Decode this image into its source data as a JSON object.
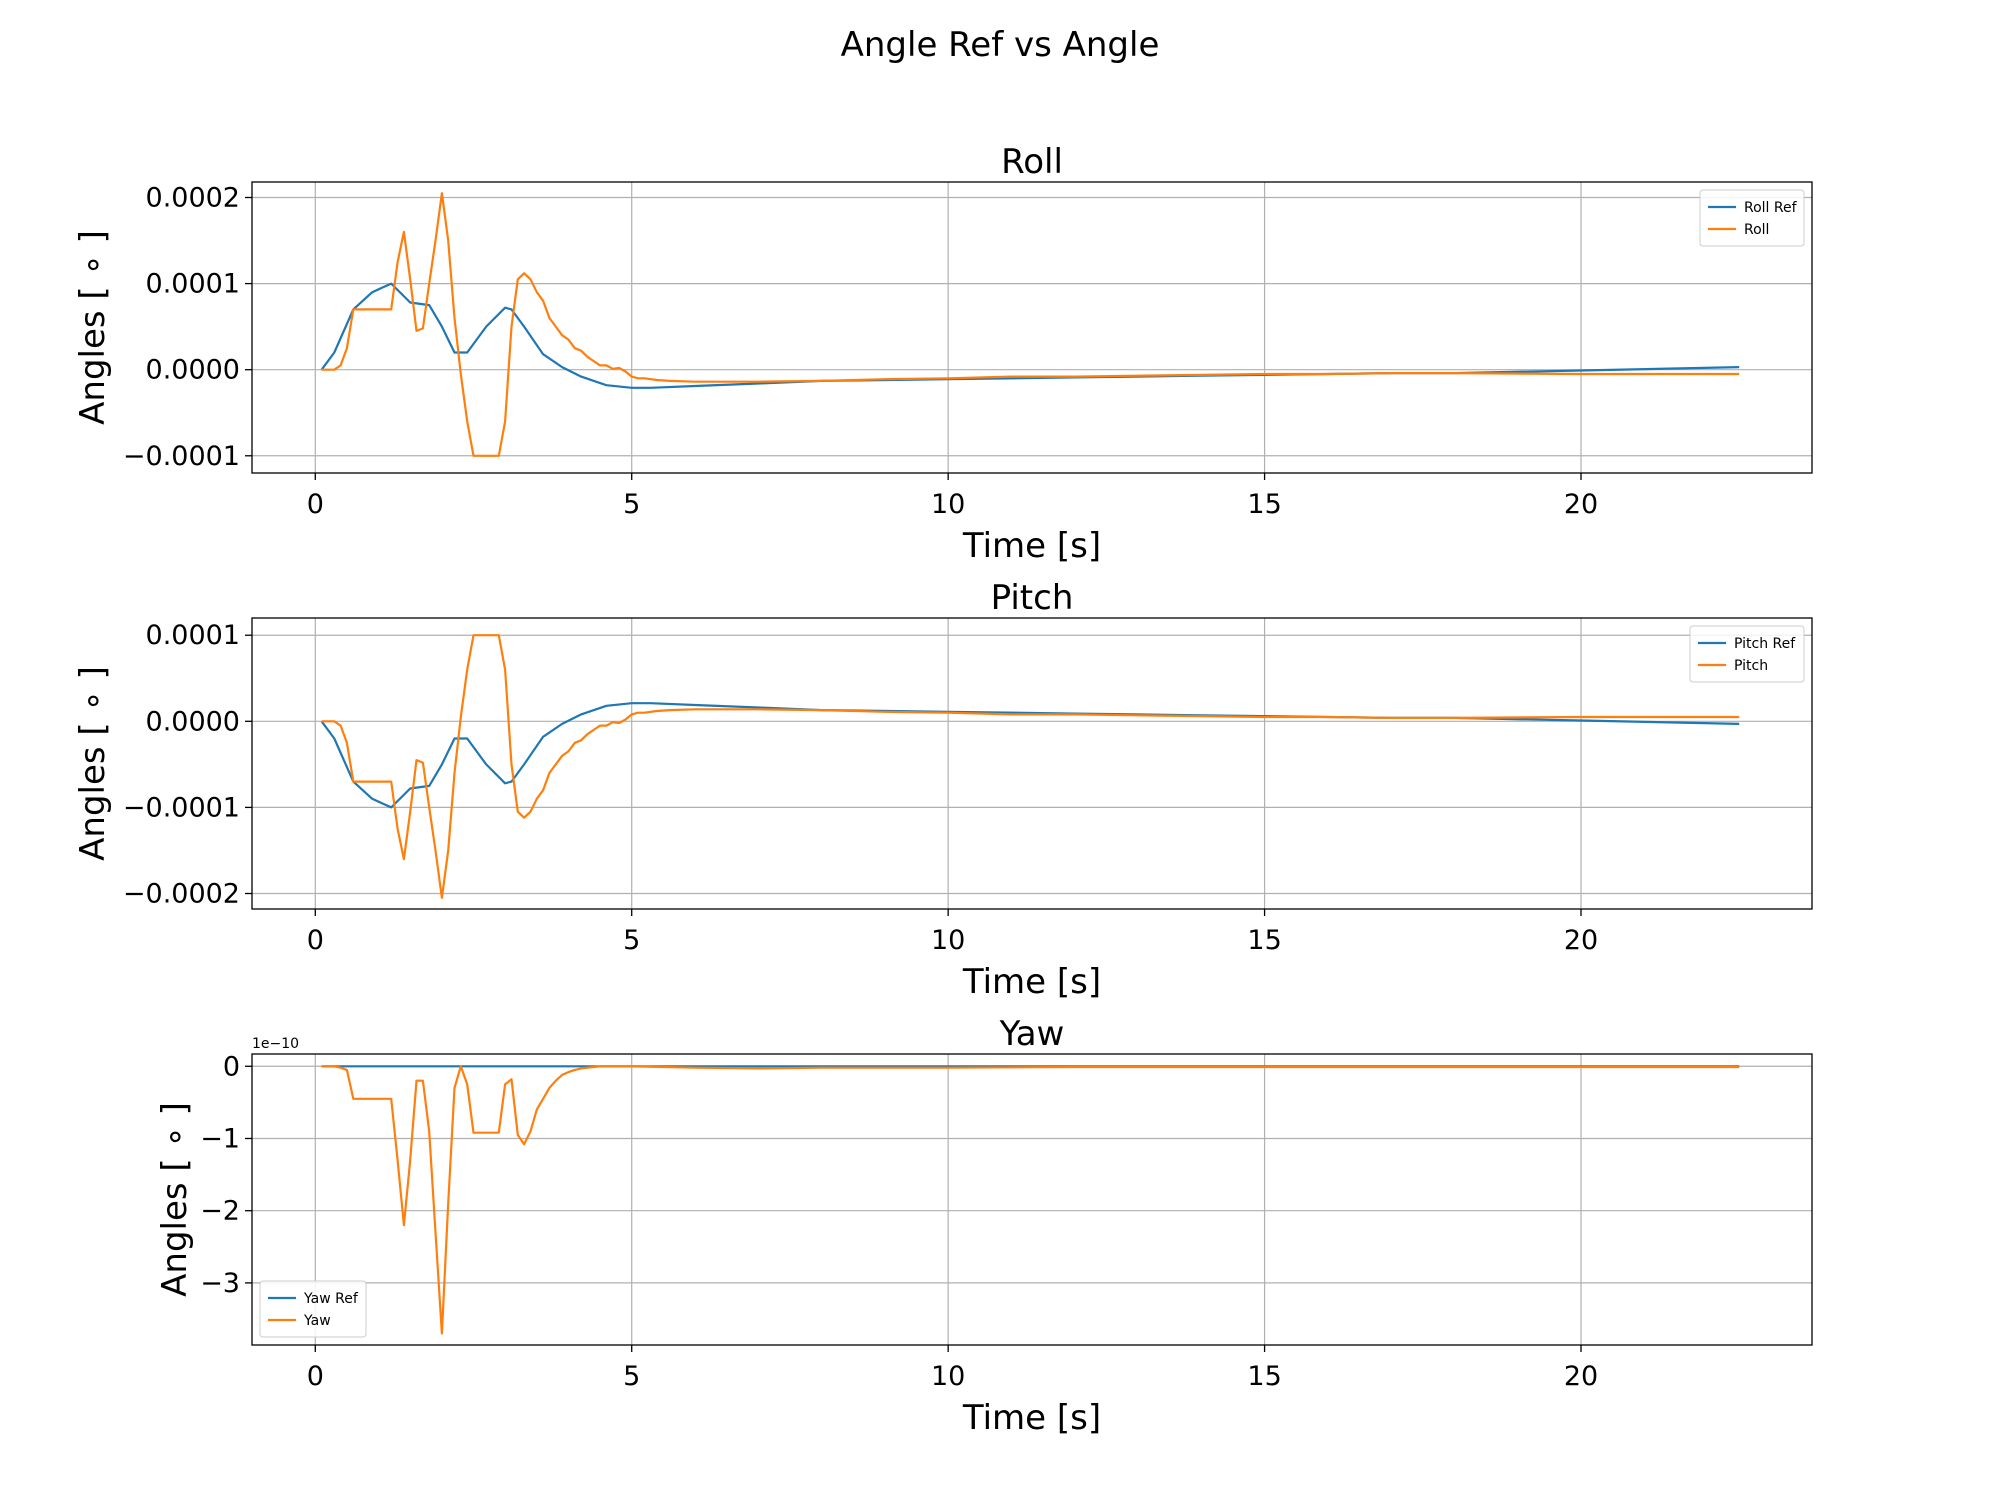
{
  "suptitle": "Angle Ref vs Angle",
  "colors": {
    "ref": "#1f77b4",
    "actual": "#ff7f0e",
    "grid": "#b0b0b0",
    "axes": "#000000"
  },
  "chart_data": [
    {
      "type": "line",
      "title": "Roll",
      "xlabel": "Time [s]",
      "ylabel": "Angles [ ∘ ]",
      "xlim": [
        -1.0,
        23.65
      ],
      "ylim": [
        -0.00012,
        0.000218
      ],
      "xticks": [
        0,
        5,
        10,
        15,
        20
      ],
      "xtick_labels": [
        "0",
        "5",
        "10",
        "15",
        "20"
      ],
      "yticks": [
        -0.0001,
        0,
        0.0001,
        0.0002
      ],
      "ytick_labels": [
        "−0.0001",
        "0.0000",
        "0.0001",
        "0.0002"
      ],
      "offset_text": "",
      "grid": true,
      "legend_position": "top-right",
      "series": [
        {
          "name": "Roll Ref",
          "color": "#1f77b4",
          "x": [
            0.1,
            0.3,
            0.6,
            0.9,
            1.2,
            1.5,
            1.8,
            2.0,
            2.2,
            2.4,
            2.7,
            3.0,
            3.1,
            3.3,
            3.6,
            3.9,
            4.2,
            4.6,
            5.0,
            5.3,
            6.0,
            7.0,
            8.0,
            10.0,
            12.0,
            14.0,
            15.0,
            16.0,
            17.0,
            18.0,
            20.0,
            22.5
          ],
          "y": [
            0,
            2e-05,
            7e-05,
            9e-05,
            0.0001,
            7.8e-05,
            7.5e-05,
            5e-05,
            2e-05,
            2e-05,
            5e-05,
            7.2e-05,
            7e-05,
            5e-05,
            1.8e-05,
            3e-06,
            -8e-06,
            -1.8e-05,
            -2.1e-05,
            -2.1e-05,
            -1.9e-05,
            -1.6e-05,
            -1.3e-05,
            -1.1e-05,
            -9e-06,
            -7e-06,
            -6e-06,
            -5e-06,
            -4e-06,
            -4e-06,
            -1e-06,
            3e-06
          ]
        },
        {
          "name": "Roll",
          "color": "#ff7f0e",
          "x": [
            0.1,
            0.3,
            0.4,
            0.5,
            0.6,
            1.2,
            1.3,
            1.4,
            1.5,
            1.6,
            1.7,
            1.8,
            1.9,
            2.0,
            2.1,
            2.2,
            2.3,
            2.4,
            2.5,
            2.6,
            2.7,
            2.8,
            2.9,
            3.0,
            3.1,
            3.2,
            3.3,
            3.4,
            3.5,
            3.6,
            3.7,
            3.8,
            3.9,
            4.0,
            4.1,
            4.2,
            4.3,
            4.4,
            4.5,
            4.6,
            4.7,
            4.8,
            4.9,
            5.0,
            5.1,
            5.2,
            5.4,
            5.6,
            6.0,
            7.0,
            8.0,
            9.0,
            10.0,
            11.0,
            12.0,
            13.0,
            14.0,
            15.0,
            16.0,
            17.0,
            18.0,
            20.0,
            22.5
          ],
          "y": [
            0,
            0,
            5e-06,
            2.5e-05,
            7e-05,
            7e-05,
            0.000125,
            0.00016,
            0.000105,
            4.5e-05,
            4.8e-05,
            0.0001,
            0.00015,
            0.000205,
            0.00015,
            6e-05,
            -5e-06,
            -6e-05,
            -0.0001,
            -0.0001,
            -0.0001,
            -0.0001,
            -0.0001,
            -6e-05,
            5e-05,
            0.000105,
            0.000112,
            0.000105,
            9e-05,
            8e-05,
            6e-05,
            5e-05,
            4e-05,
            3.5e-05,
            2.5e-05,
            2.2e-05,
            1.5e-05,
            1e-05,
            5e-06,
            5e-06,
            1e-06,
            2e-06,
            -2e-06,
            -8e-06,
            -1e-05,
            -1e-05,
            -1.2e-05,
            -1.3e-05,
            -1.4e-05,
            -1.4e-05,
            -1.3e-05,
            -1.1e-05,
            -1e-05,
            -8e-06,
            -8e-06,
            -7e-06,
            -6e-06,
            -5e-06,
            -5e-06,
            -4e-06,
            -4e-06,
            -5e-06,
            -5e-06
          ]
        }
      ]
    },
    {
      "type": "line",
      "title": "Pitch",
      "xlabel": "Time [s]",
      "ylabel": "Angles [ ∘ ]",
      "xlim": [
        -1.0,
        23.65
      ],
      "ylim": [
        -0.000218,
        0.00012
      ],
      "xticks": [
        0,
        5,
        10,
        15,
        20
      ],
      "xtick_labels": [
        "0",
        "5",
        "10",
        "15",
        "20"
      ],
      "yticks": [
        -0.0002,
        -0.0001,
        0,
        0.0001
      ],
      "ytick_labels": [
        "−0.0002",
        "−0.0001",
        "0.0000",
        "0.0001"
      ],
      "offset_text": "",
      "grid": true,
      "legend_position": "top-right",
      "series": [
        {
          "name": "Pitch Ref",
          "color": "#1f77b4",
          "x": [
            0.1,
            0.3,
            0.6,
            0.9,
            1.2,
            1.5,
            1.8,
            2.0,
            2.2,
            2.4,
            2.7,
            3.0,
            3.1,
            3.3,
            3.6,
            3.9,
            4.2,
            4.6,
            5.0,
            5.3,
            6.0,
            7.0,
            8.0,
            10.0,
            12.0,
            14.0,
            15.0,
            16.0,
            17.0,
            18.0,
            20.0,
            22.5
          ],
          "y": [
            0,
            -2e-05,
            -7e-05,
            -9e-05,
            -0.0001,
            -7.8e-05,
            -7.5e-05,
            -5e-05,
            -2e-05,
            -2e-05,
            -5e-05,
            -7.2e-05,
            -7e-05,
            -5e-05,
            -1.8e-05,
            -3e-06,
            8e-06,
            1.8e-05,
            2.1e-05,
            2.1e-05,
            1.9e-05,
            1.6e-05,
            1.3e-05,
            1.1e-05,
            9e-06,
            7e-06,
            6e-06,
            5e-06,
            4e-06,
            4e-06,
            1e-06,
            -3e-06
          ]
        },
        {
          "name": "Pitch",
          "color": "#ff7f0e",
          "x": [
            0.1,
            0.3,
            0.4,
            0.5,
            0.6,
            1.2,
            1.3,
            1.4,
            1.5,
            1.6,
            1.7,
            1.8,
            1.9,
            2.0,
            2.1,
            2.2,
            2.3,
            2.4,
            2.5,
            2.6,
            2.7,
            2.8,
            2.9,
            3.0,
            3.1,
            3.2,
            3.3,
            3.4,
            3.5,
            3.6,
            3.7,
            3.8,
            3.9,
            4.0,
            4.1,
            4.2,
            4.3,
            4.4,
            4.5,
            4.6,
            4.7,
            4.8,
            4.9,
            5.0,
            5.1,
            5.2,
            5.4,
            5.6,
            6.0,
            7.0,
            8.0,
            9.0,
            10.0,
            11.0,
            12.0,
            13.0,
            14.0,
            15.0,
            16.0,
            17.0,
            18.0,
            20.0,
            22.5
          ],
          "y": [
            0,
            0,
            -5e-06,
            -2.5e-05,
            -7e-05,
            -7e-05,
            -0.000125,
            -0.00016,
            -0.000105,
            -4.5e-05,
            -4.8e-05,
            -0.0001,
            -0.00015,
            -0.000205,
            -0.00015,
            -6e-05,
            5e-06,
            6e-05,
            0.0001,
            0.0001,
            0.0001,
            0.0001,
            0.0001,
            6e-05,
            -5e-05,
            -0.000105,
            -0.000112,
            -0.000105,
            -9e-05,
            -8e-05,
            -6e-05,
            -5e-05,
            -4e-05,
            -3.5e-05,
            -2.5e-05,
            -2.2e-05,
            -1.5e-05,
            -1e-05,
            -5e-06,
            -5e-06,
            -1e-06,
            -2e-06,
            2e-06,
            8e-06,
            1e-05,
            1e-05,
            1.2e-05,
            1.3e-05,
            1.4e-05,
            1.4e-05,
            1.3e-05,
            1.1e-05,
            1e-05,
            8e-06,
            8e-06,
            7e-06,
            6e-06,
            5e-06,
            5e-06,
            4e-06,
            4e-06,
            5e-06,
            5e-06
          ]
        }
      ]
    },
    {
      "type": "line",
      "title": "Yaw",
      "xlabel": "Time [s]",
      "ylabel": "Angles [ ∘ ]",
      "xlim": [
        -1.0,
        23.65
      ],
      "ylim": [
        -3.86,
        0.17
      ],
      "xticks": [
        0,
        5,
        10,
        15,
        20
      ],
      "xtick_labels": [
        "0",
        "5",
        "10",
        "15",
        "20"
      ],
      "yticks": [
        -3,
        -2,
        -1,
        0
      ],
      "ytick_labels": [
        "−3",
        "−2",
        "−1",
        "0"
      ],
      "offset_text": "1e−10",
      "grid": true,
      "legend_position": "bottom-left",
      "series": [
        {
          "name": "Yaw Ref",
          "color": "#1f77b4",
          "x": [
            0.1,
            22.5
          ],
          "y": [
            0,
            0
          ]
        },
        {
          "name": "Yaw",
          "color": "#ff7f0e",
          "x": [
            0.1,
            0.3,
            0.4,
            0.5,
            0.6,
            1.2,
            1.3,
            1.4,
            1.5,
            1.6,
            1.7,
            1.8,
            1.9,
            2.0,
            2.1,
            2.2,
            2.3,
            2.4,
            2.5,
            2.6,
            2.7,
            2.8,
            2.9,
            3.0,
            3.1,
            3.2,
            3.3,
            3.4,
            3.5,
            3.6,
            3.7,
            3.8,
            3.9,
            4.0,
            4.1,
            4.2,
            4.3,
            4.4,
            4.5,
            5.0,
            6.0,
            7.0,
            8.0,
            10.0,
            12.0,
            14.0,
            16.0,
            18.0,
            20.0,
            22.5
          ],
          "y": [
            0,
            0,
            -0.02,
            -0.05,
            -0.45,
            -0.45,
            -1.3,
            -2.2,
            -1.3,
            -0.2,
            -0.2,
            -0.9,
            -2.3,
            -3.7,
            -1.9,
            -0.3,
            0,
            -0.25,
            -0.92,
            -0.92,
            -0.92,
            -0.92,
            -0.92,
            -0.25,
            -0.18,
            -0.95,
            -1.08,
            -0.9,
            -0.6,
            -0.45,
            -0.3,
            -0.2,
            -0.12,
            -0.08,
            -0.05,
            -0.03,
            -0.02,
            -0.01,
            0,
            0,
            -0.02,
            -0.03,
            -0.02,
            -0.02,
            -0.01,
            -0.01,
            -0.01,
            -0.01,
            -0.01,
            -0.01
          ]
        }
      ]
    }
  ]
}
